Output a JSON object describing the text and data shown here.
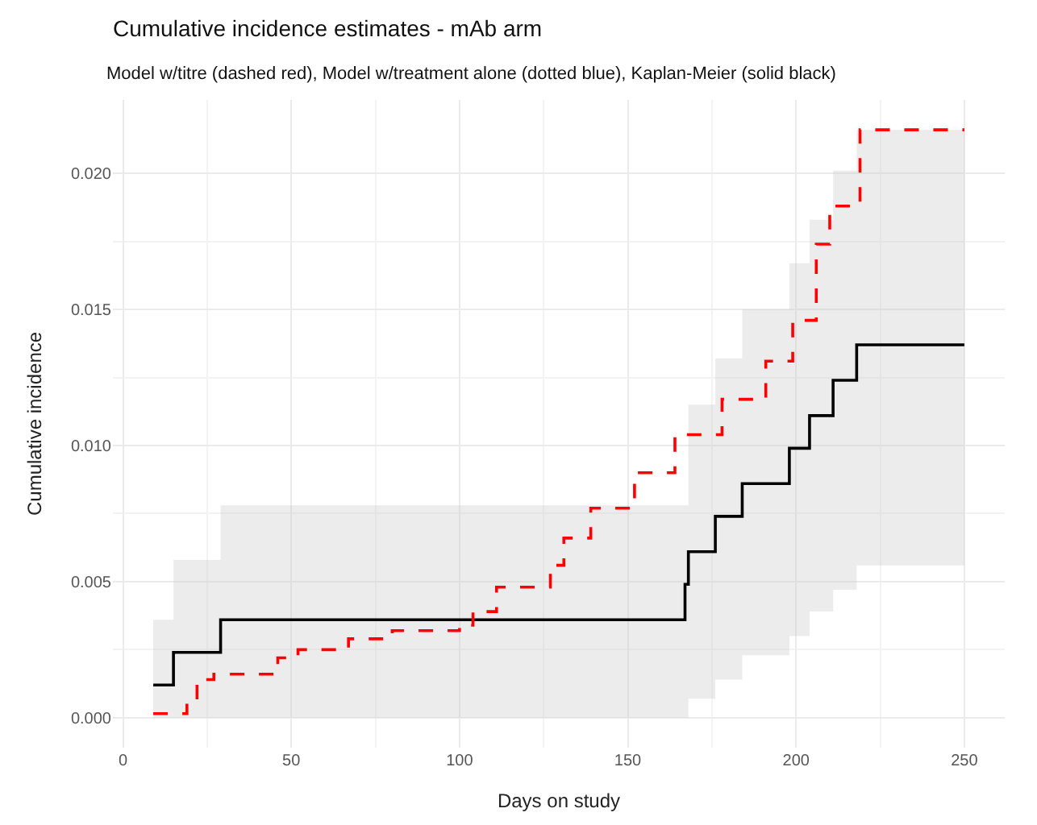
{
  "chart_data": {
    "type": "step",
    "title": "Cumulative incidence estimates - mAb arm",
    "subtitle": "Model w/titre (dashed red), Model w/treatment alone (dotted blue), Kaplan-Meier (solid black)",
    "xlabel": "Days on study",
    "ylabel": "Cumulative incidence",
    "xlim": [
      -3,
      262
    ],
    "xticks": [
      0,
      50,
      100,
      150,
      200,
      250
    ],
    "ylim": [
      -0.0011,
      0.0227
    ],
    "yticks": [
      {
        "value": 0,
        "label": "0.000"
      },
      {
        "value": 0.005,
        "label": "0.005"
      },
      {
        "value": 0.01,
        "label": "0.010"
      },
      {
        "value": 0.015,
        "label": "0.015"
      },
      {
        "value": 0.02,
        "label": "0.020"
      }
    ],
    "grid": true,
    "series": [
      {
        "color": "#000000",
        "line_style": "solid",
        "x": [
          9,
          15,
          29,
          167,
          168,
          176,
          184,
          198,
          204,
          211,
          218,
          250
        ],
        "values": [
          0.0012,
          0.0024,
          0.0036,
          0.0049,
          0.0061,
          0.0074,
          0.0086,
          0.0099,
          0.0111,
          0.0124,
          0.0137,
          0.0137
        ],
        "lower": [
          0,
          0,
          0,
          0,
          0.0007,
          0.0014,
          0.0023,
          0.003,
          0.0039,
          0.0047,
          0.0056,
          0.0056
        ],
        "upper": [
          0.0036,
          0.0058,
          0.0078,
          0.0078,
          0.0115,
          0.0132,
          0.015,
          0.0167,
          0.0183,
          0.0201,
          0.0216,
          0.0216
        ]
      },
      {
        "color": "#ff0000",
        "line_style": "dashed",
        "x": [
          9,
          19,
          22,
          27,
          46,
          52,
          67,
          80,
          100,
          104,
          111,
          127,
          131,
          139,
          152,
          164,
          178,
          191,
          199,
          206,
          210,
          219,
          250
        ],
        "values": [
          0.00015,
          0.0006,
          0.0014,
          0.0016,
          0.0022,
          0.0025,
          0.0029,
          0.0032,
          0.0034,
          0.0039,
          0.0048,
          0.0056,
          0.0066,
          0.0077,
          0.009,
          0.0104,
          0.0117,
          0.0131,
          0.0146,
          0.0174,
          0.0188,
          0.0216,
          0.0216
        ]
      }
    ]
  }
}
